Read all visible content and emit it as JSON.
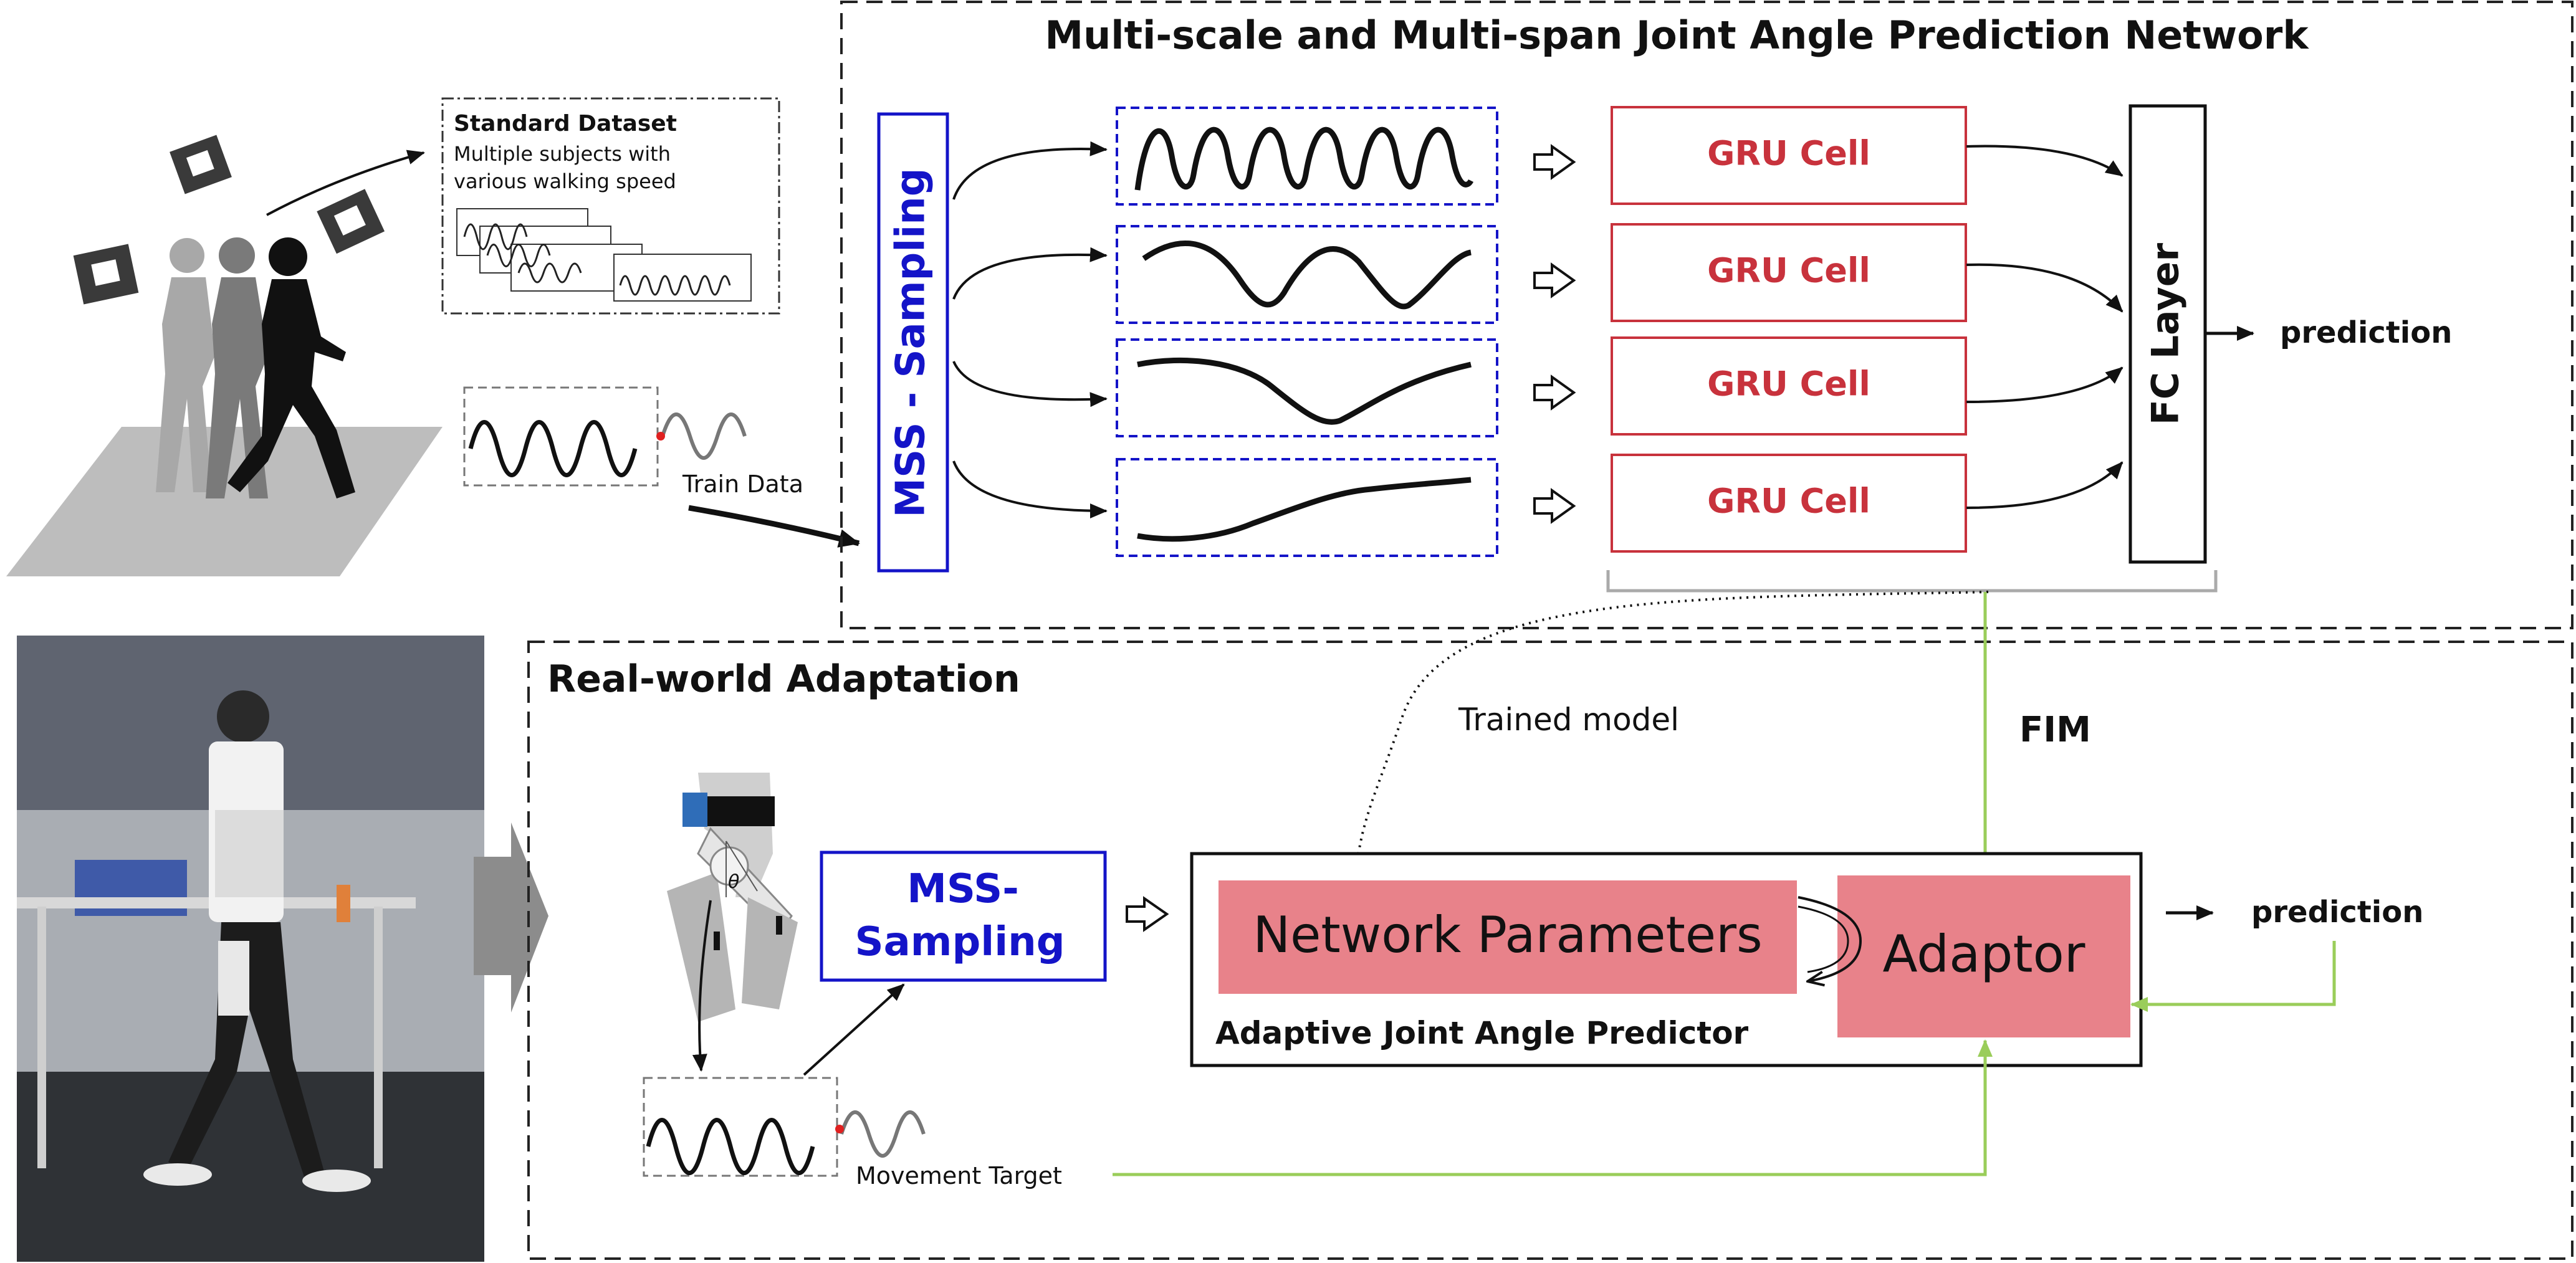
{
  "network": {
    "title": "Multi-scale and Multi-span Joint Angle Prediction Network",
    "mss_sampling": "MSS - Sampling",
    "gru_cells": [
      "GRU Cell",
      "GRU Cell",
      "GRU Cell",
      "GRU Cell"
    ],
    "fc_layer": "FC Layer",
    "prediction": "prediction"
  },
  "dataset": {
    "title": "Standard Dataset",
    "desc_line1": "Multiple subjects with",
    "desc_line2": "various walking speed",
    "train_data": "Train Data"
  },
  "adaptation": {
    "title": "Real-world Adaptation",
    "trained_model": "Trained model",
    "fim": "FIM",
    "mss_line1": "MSS-",
    "mss_line2": "Sampling",
    "network_parameters": "Network Parameters",
    "adaptor": "Adaptor",
    "predictor_label": "Adaptive Joint Angle Predictor",
    "prediction": "prediction",
    "movement_target": "Movement Target",
    "theta": "θ"
  },
  "colors": {
    "gru_red": "#c8323c",
    "mss_blue": "#1414c8",
    "adaptor_pink": "#e8828a",
    "fim_green": "#9acd5a"
  }
}
